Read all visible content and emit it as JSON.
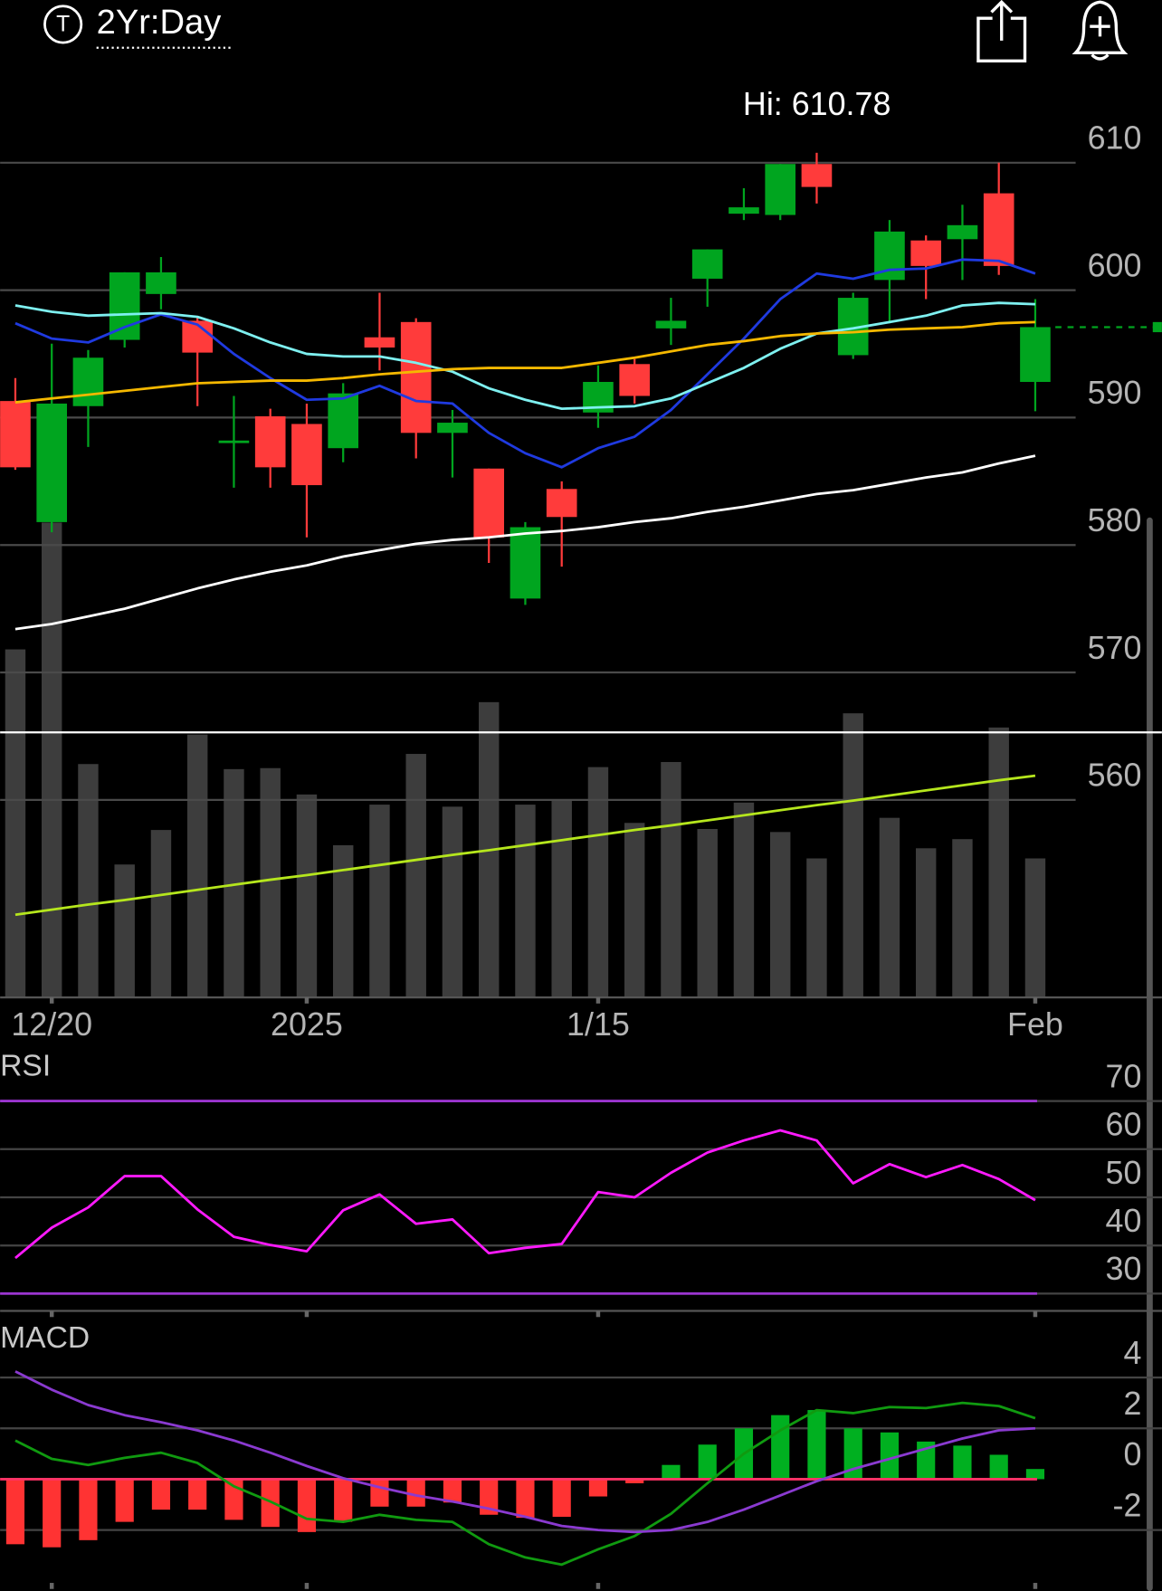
{
  "header": {
    "icon_letter": "T",
    "range": "2Yr:Day"
  },
  "chart_data": [
    {
      "type": "candlestick",
      "annotation": "Hi: 610.78",
      "categories": [
        null,
        "12/20",
        null,
        null,
        null,
        null,
        null,
        null,
        "2025",
        null,
        null,
        null,
        null,
        null,
        null,
        null,
        "1/15",
        null,
        null,
        null,
        null,
        null,
        null,
        null,
        null,
        null,
        null,
        null,
        "Feb"
      ],
      "open": [
        591.3,
        581.8,
        590.9,
        596.1,
        599.7,
        597.6,
        588.0,
        590.1,
        589.5,
        587.6,
        596.3,
        597.5,
        588.8,
        586.0,
        575.8,
        584.4,
        590.4,
        594.2,
        597.0,
        600.9,
        606.0,
        605.9,
        609.9,
        594.9,
        600.8,
        603.9,
        604.0,
        607.6,
        592.8
      ],
      "high": [
        593.1,
        595.8,
        595.3,
        601.4,
        602.6,
        597.9,
        591.7,
        590.7,
        591.1,
        592.7,
        599.8,
        597.8,
        590.6,
        586.0,
        581.8,
        585.0,
        594.1,
        594.6,
        599.4,
        603.2,
        608.0,
        609.9,
        610.78,
        599.8,
        605.5,
        604.3,
        606.7,
        610.0,
        599.3
      ],
      "low": [
        585.9,
        581.0,
        587.7,
        595.5,
        598.5,
        590.9,
        584.5,
        584.5,
        580.6,
        586.5,
        593.7,
        586.8,
        585.3,
        578.6,
        575.3,
        578.3,
        589.2,
        591.1,
        595.7,
        598.7,
        605.5,
        605.5,
        606.8,
        594.6,
        597.4,
        599.3,
        600.8,
        601.2,
        590.5
      ],
      "close": [
        586.1,
        591.1,
        594.7,
        601.4,
        601.4,
        595.1,
        588.2,
        586.1,
        584.7,
        591.9,
        595.5,
        588.8,
        589.6,
        580.6,
        581.4,
        582.2,
        592.8,
        591.7,
        597.6,
        603.2,
        606.5,
        609.9,
        608.1,
        599.4,
        604.6,
        601.9,
        605.1,
        601.9,
        597.1
      ],
      "up_color": "#00a51f",
      "down_color": "#ff3b3b",
      "ylim": [
        544.5,
        616.4
      ],
      "yticks": [
        560,
        570,
        580,
        590,
        600,
        610
      ],
      "grid": true,
      "y2lim": [
        0,
        180.6
      ],
      "volume": {
        "axis": "y2",
        "color": "#3d3d3d",
        "values": [
          68.6,
          93.6,
          46.0,
          26.2,
          33.0,
          51.8,
          45.0,
          45.2,
          40.0,
          30.0,
          38.0,
          48.0,
          37.6,
          58.2,
          38.0,
          38.8,
          45.4,
          34.4,
          46.4,
          33.2,
          38.4,
          32.6,
          27.4,
          56.0,
          35.4,
          29.4,
          31.2,
          53.2,
          27.4
        ]
      },
      "volume_ma": {
        "axis": "y2",
        "color": "#b5e61d",
        "values": [
          16.3,
          17.3,
          18.3,
          19.2,
          20.2,
          21.2,
          22.2,
          23.2,
          24.1,
          25.1,
          26.1,
          27.1,
          28.1,
          29.0,
          30.0,
          31.0,
          32.0,
          33.0,
          33.9,
          34.9,
          35.9,
          36.9,
          37.9,
          38.8,
          39.8,
          40.8,
          41.8,
          42.8,
          43.7
        ]
      },
      "hline": 565.3,
      "hline_color": "#ffffff",
      "last_price_color": "#00a51f",
      "lines": [
        {
          "color": "#1f3ae0",
          "values": [
            597.4,
            596.2,
            595.9,
            597.1,
            598.1,
            597.3,
            595.0,
            593.1,
            591.4,
            591.5,
            592.5,
            591.3,
            591.1,
            588.8,
            587.2,
            586.1,
            587.6,
            588.5,
            590.6,
            593.4,
            596.2,
            599.3,
            601.3,
            600.9,
            601.6,
            601.7,
            602.4,
            602.3,
            601.3
          ]
        },
        {
          "color": "#7ef0f0",
          "values": [
            598.8,
            598.3,
            598.0,
            598.1,
            598.2,
            597.9,
            597.0,
            595.9,
            595.0,
            594.8,
            594.8,
            594.3,
            593.6,
            592.3,
            591.4,
            590.7,
            590.8,
            590.9,
            591.5,
            592.7,
            593.9,
            595.4,
            596.6,
            597.0,
            597.5,
            598.0,
            598.8,
            599.0,
            598.9
          ]
        },
        {
          "color": "#f5b800",
          "values": [
            591.2,
            591.5,
            591.8,
            592.1,
            592.4,
            592.7,
            592.8,
            592.9,
            592.9,
            593.1,
            593.4,
            593.6,
            593.8,
            593.9,
            593.9,
            593.9,
            594.3,
            594.7,
            595.2,
            595.7,
            596.0,
            596.4,
            596.6,
            596.7,
            596.9,
            597.0,
            597.1,
            597.4,
            597.5
          ]
        },
        {
          "color": "#ffffff",
          "values": [
            573.4,
            573.8,
            574.4,
            575.0,
            575.8,
            576.6,
            577.3,
            577.9,
            578.4,
            579.1,
            579.6,
            580.1,
            580.4,
            580.6,
            580.9,
            581.1,
            581.4,
            581.8,
            582.1,
            582.6,
            583.0,
            583.5,
            584.0,
            584.3,
            584.8,
            585.3,
            585.7,
            586.4,
            587.0
          ]
        }
      ]
    },
    {
      "type": "line",
      "title": "RSI",
      "color": "#ff1aff",
      "values": [
        37.4,
        43.7,
        47.9,
        54.4,
        54.4,
        47.5,
        41.8,
        40.1,
        38.8,
        47.3,
        50.6,
        44.5,
        45.4,
        38.4,
        39.5,
        40.3,
        51.1,
        50.0,
        55.1,
        59.3,
        61.8,
        63.9,
        61.8,
        52.9,
        56.9,
        54.2,
        56.7,
        53.8,
        49.4
      ],
      "ylim": [
        26.4,
        79.5
      ],
      "yticks": [
        30,
        40,
        50,
        60,
        70
      ],
      "grid": true,
      "levels": [
        70,
        30
      ],
      "level_color": "#9b35d0"
    },
    {
      "type": "macd",
      "title": "MACD",
      "histogram": [
        -2.56,
        -2.68,
        -2.4,
        -1.68,
        -1.2,
        -1.2,
        -1.6,
        -1.88,
        -2.08,
        -1.68,
        -1.08,
        -1.08,
        -0.92,
        -1.4,
        -1.52,
        -1.48,
        -0.68,
        -0.16,
        0.56,
        1.36,
        2.0,
        2.52,
        2.72,
        2.0,
        1.84,
        1.48,
        1.32,
        0.96,
        0.4
      ],
      "macd": [
        1.52,
        0.8,
        0.56,
        0.84,
        1.04,
        0.64,
        -0.28,
        -0.88,
        -1.56,
        -1.68,
        -1.4,
        -1.6,
        -1.68,
        -2.56,
        -3.08,
        -3.36,
        -2.76,
        -2.24,
        -1.36,
        -0.16,
        1.0,
        1.92,
        2.72,
        2.6,
        2.84,
        2.8,
        3.0,
        2.88,
        2.4
      ],
      "signal": [
        4.24,
        3.52,
        2.92,
        2.52,
        2.24,
        1.92,
        1.52,
        1.04,
        0.52,
        0.04,
        -0.32,
        -0.64,
        -0.88,
        -1.16,
        -1.48,
        -1.84,
        -2.0,
        -2.08,
        -2.0,
        -1.68,
        -1.2,
        -0.64,
        -0.08,
        0.4,
        0.8,
        1.2,
        1.6,
        1.92,
        2.0
      ],
      "macd_color": "#109a10",
      "signal_color": "#8a3ad0",
      "up_color": "#00b020",
      "down_color": "#ff3333",
      "zero_color": "#ff3366",
      "ylim": [
        -4.4,
        6.1
      ],
      "yticks": [
        4,
        2,
        0,
        -2
      ],
      "grid": true
    }
  ]
}
